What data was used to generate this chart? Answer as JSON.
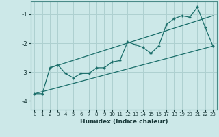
{
  "xlabel": "Humidex (Indice chaleur)",
  "ylabel": "",
  "bg_color": "#cce8e8",
  "grid_color": "#aed0d0",
  "line_color": "#1a6e6a",
  "xlim": [
    -0.5,
    23.5
  ],
  "ylim": [
    -4.3,
    -0.55
  ],
  "yticks": [
    -4,
    -3,
    -2,
    -1
  ],
  "xticks": [
    0,
    1,
    2,
    3,
    4,
    5,
    6,
    7,
    8,
    9,
    10,
    11,
    12,
    13,
    14,
    15,
    16,
    17,
    18,
    19,
    20,
    21,
    22,
    23
  ],
  "data_x": [
    0,
    1,
    2,
    3,
    4,
    5,
    6,
    7,
    8,
    9,
    10,
    11,
    12,
    13,
    14,
    15,
    16,
    17,
    18,
    19,
    20,
    21,
    22,
    23
  ],
  "data_y": [
    -3.75,
    -3.75,
    -2.85,
    -2.75,
    -3.05,
    -3.2,
    -3.05,
    -3.05,
    -2.85,
    -2.85,
    -2.65,
    -2.6,
    -1.95,
    -2.05,
    -2.15,
    -2.35,
    -2.1,
    -1.35,
    -1.15,
    -1.05,
    -1.1,
    -0.75,
    -1.45,
    -2.1
  ],
  "trend1_x": [
    0,
    23
  ],
  "trend1_y": [
    -3.75,
    -2.1
  ],
  "trend2_x": [
    2,
    23
  ],
  "trend2_y": [
    -2.85,
    -1.05
  ]
}
